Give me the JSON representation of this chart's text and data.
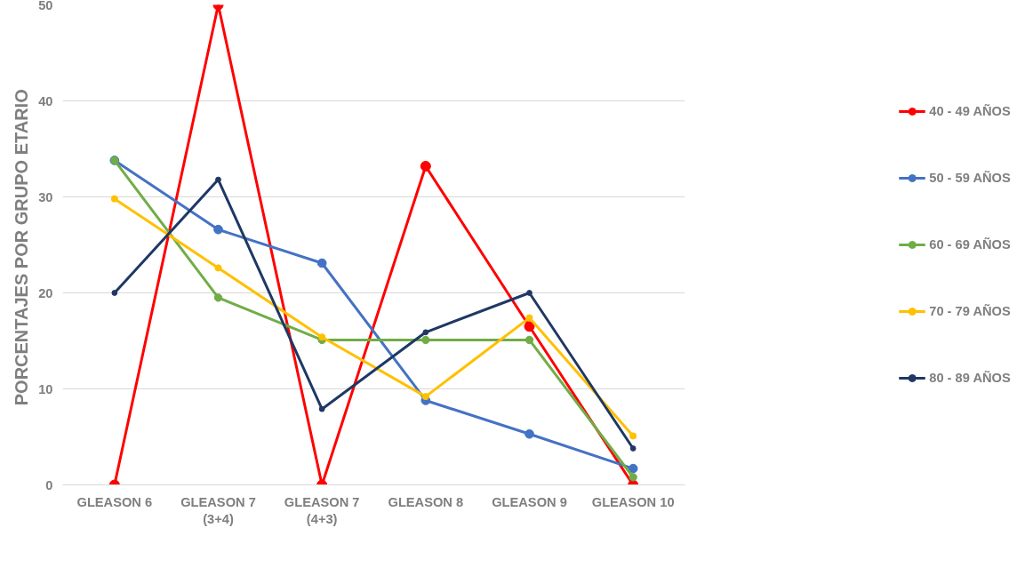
{
  "chart_data": {
    "type": "line",
    "ylabel": "PORCENTAJES  POR GRUPO ETARIO",
    "categories": [
      "GLEASON 6",
      "GLEASON 7\n(3+4)",
      "GLEASON 7\n(4+3)",
      "GLEASON 8",
      "GLEASON 9",
      "GLEASON 10"
    ],
    "series": [
      {
        "name": "40 - 49 AÑOS",
        "color": "#ff0000",
        "values": [
          0,
          50,
          0,
          33.2,
          16.5,
          0
        ]
      },
      {
        "name": "50 - 59 AÑOS",
        "color": "#4472c4",
        "values": [
          33.8,
          26.6,
          23.1,
          8.8,
          5.3,
          1.7
        ]
      },
      {
        "name": "60 - 69 AÑOS",
        "color": "#70ad47",
        "values": [
          33.8,
          19.5,
          15.1,
          15.1,
          15.1,
          0.8
        ]
      },
      {
        "name": "70 - 79 AÑOS",
        "color": "#ffc000",
        "values": [
          29.8,
          22.6,
          15.4,
          9.2,
          17.4,
          5.1
        ]
      },
      {
        "name": "80 - 89 AÑOS",
        "color": "#1f3864",
        "values": [
          20,
          31.8,
          7.9,
          15.9,
          20,
          3.8
        ]
      }
    ],
    "ylim": [
      0,
      50
    ],
    "yticks": [
      0,
      10,
      20,
      30,
      40,
      50
    ],
    "grid": "y",
    "legend": "right",
    "marker": "circle",
    "line_style": "solid"
  }
}
